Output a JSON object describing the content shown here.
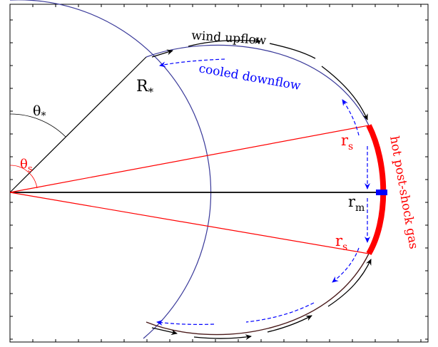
{
  "labels": {
    "r_star": "R",
    "r_star_sub": "*",
    "theta_star": "θ",
    "theta_star_sub": "*",
    "theta_s": "θ",
    "theta_s_sub": "s",
    "r_s_upper": "r",
    "r_s_upper_sub": "s",
    "r_s_lower": "r",
    "r_s_lower_sub": "s",
    "r_m": "r",
    "r_m_sub": "m",
    "wind_upflow": "wind upflow",
    "cooled_downflow": "cooled downflow",
    "hot_post_shock_gas": "hot post-shock gas"
  },
  "colors": {
    "star_circle": "#3a3a9a",
    "field_loop": "#3a3a9a",
    "shock": "#ff0000",
    "radius_lines": "#ff0000",
    "upflow_arrows": "#000000",
    "downflow_arrows": "#0000ff",
    "rm_marker": "#0000ff"
  }
}
